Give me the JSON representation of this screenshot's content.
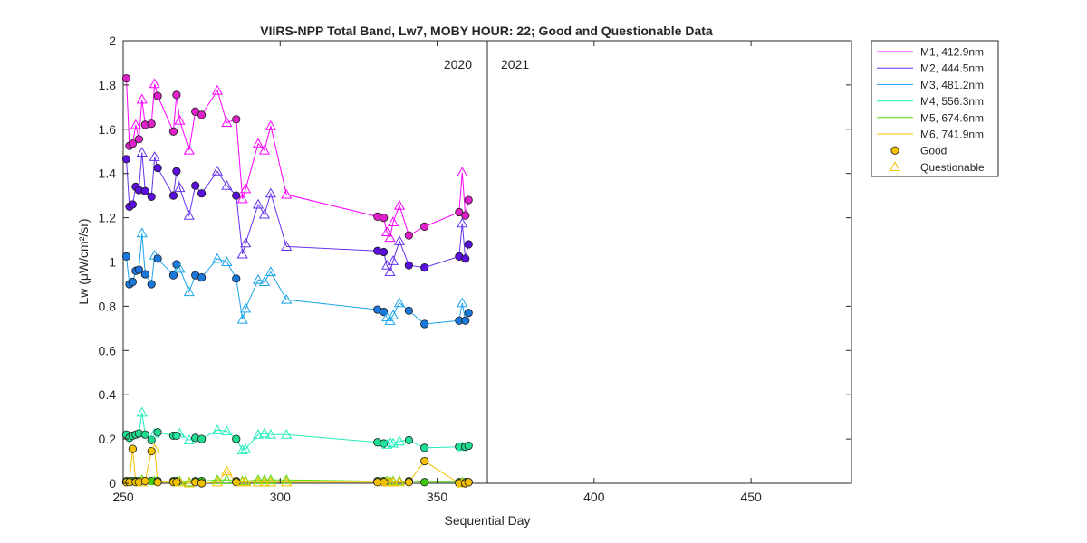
{
  "chart_data": {
    "type": "line",
    "title": "VIIRS-NPP Total Band,  Lw7, MOBY HOUR: 22;  Good and Questionable Data",
    "xlabel": "Sequential Day",
    "ylabel": "Lw (μW/cm²/sr)",
    "xlim": [
      250,
      482
    ],
    "ylim": [
      0,
      2
    ],
    "xticks": [
      250,
      300,
      350,
      400,
      450
    ],
    "yticks": [
      0,
      0.2,
      0.4,
      0.6,
      0.8,
      1,
      1.2,
      1.4,
      1.6,
      1.8,
      2
    ],
    "grid": false,
    "legend_position": "outside-top-right",
    "year_divider": {
      "x": 366,
      "left_label": "2020",
      "right_label": "2021"
    },
    "markers": {
      "good": "filled-circle",
      "questionable": "hollow-triangle"
    },
    "legend": {
      "good_label": "Good",
      "questionable_label": "Questionable",
      "good_marker_color": "#f2c100",
      "questionable_marker_color": "#f2c100"
    },
    "series": [
      {
        "name": "M1, 412.9nm",
        "color": "#ff00ff",
        "fill": "#e020c8",
        "points": [
          [
            251,
            1.83,
            "g"
          ],
          [
            252,
            1.525,
            "g"
          ],
          [
            253,
            1.535,
            "g"
          ],
          [
            254,
            1.62,
            "q"
          ],
          [
            255,
            1.555,
            "g"
          ],
          [
            256,
            1.735,
            "q"
          ],
          [
            257,
            1.62,
            "g"
          ],
          [
            259,
            1.625,
            "g"
          ],
          [
            260,
            1.805,
            "q"
          ],
          [
            261,
            1.75,
            "g"
          ],
          [
            266,
            1.59,
            "g"
          ],
          [
            267,
            1.755,
            "g"
          ],
          [
            268,
            1.64,
            "q"
          ],
          [
            271,
            1.505,
            "q"
          ],
          [
            273,
            1.68,
            "g"
          ],
          [
            275,
            1.665,
            "g"
          ],
          [
            280,
            1.775,
            "q"
          ],
          [
            283,
            1.63,
            "q"
          ],
          [
            286,
            1.645,
            "g"
          ],
          [
            288,
            1.285,
            "q"
          ],
          [
            289,
            1.33,
            "q"
          ],
          [
            293,
            1.535,
            "q"
          ],
          [
            295,
            1.505,
            "q"
          ],
          [
            297,
            1.615,
            "q"
          ],
          [
            302,
            1.305,
            "q"
          ],
          [
            331,
            1.205,
            "g"
          ],
          [
            333,
            1.2,
            "g"
          ],
          [
            334,
            1.135,
            "q"
          ],
          [
            335,
            1.11,
            "q"
          ],
          [
            336,
            1.18,
            "q"
          ],
          [
            338,
            1.255,
            "q"
          ],
          [
            341,
            1.12,
            "g"
          ],
          [
            346,
            1.16,
            "g"
          ],
          [
            357,
            1.225,
            "g"
          ],
          [
            358,
            1.405,
            "q"
          ],
          [
            359,
            1.21,
            "g"
          ],
          [
            360,
            1.28,
            "g"
          ]
        ]
      },
      {
        "name": "M2, 444.5nm",
        "color": "#6633ee",
        "fill": "#5a10dc",
        "points": [
          [
            251,
            1.465,
            "g"
          ],
          [
            252,
            1.25,
            "g"
          ],
          [
            253,
            1.26,
            "g"
          ],
          [
            254,
            1.34,
            "g"
          ],
          [
            255,
            1.325,
            "g"
          ],
          [
            256,
            1.495,
            "q"
          ],
          [
            257,
            1.32,
            "g"
          ],
          [
            259,
            1.295,
            "g"
          ],
          [
            260,
            1.475,
            "q"
          ],
          [
            261,
            1.425,
            "g"
          ],
          [
            266,
            1.3,
            "g"
          ],
          [
            267,
            1.41,
            "g"
          ],
          [
            268,
            1.335,
            "q"
          ],
          [
            271,
            1.21,
            "q"
          ],
          [
            273,
            1.345,
            "g"
          ],
          [
            275,
            1.31,
            "g"
          ],
          [
            280,
            1.41,
            "q"
          ],
          [
            283,
            1.345,
            "q"
          ],
          [
            286,
            1.3,
            "g"
          ],
          [
            288,
            1.035,
            "q"
          ],
          [
            289,
            1.085,
            "q"
          ],
          [
            293,
            1.26,
            "q"
          ],
          [
            295,
            1.215,
            "q"
          ],
          [
            297,
            1.31,
            "q"
          ],
          [
            302,
            1.07,
            "q"
          ],
          [
            331,
            1.05,
            "g"
          ],
          [
            333,
            1.045,
            "g"
          ],
          [
            334,
            0.985,
            "q"
          ],
          [
            335,
            0.955,
            "q"
          ],
          [
            336,
            1.005,
            "q"
          ],
          [
            338,
            1.095,
            "q"
          ],
          [
            341,
            0.985,
            "g"
          ],
          [
            346,
            0.975,
            "g"
          ],
          [
            357,
            1.025,
            "g"
          ],
          [
            358,
            1.175,
            "q"
          ],
          [
            359,
            1.015,
            "g"
          ],
          [
            360,
            1.08,
            "g"
          ]
        ]
      },
      {
        "name": "M3, 481.2nm",
        "color": "#1aa3e8",
        "fill": "#1a78dc",
        "points": [
          [
            251,
            1.025,
            "g"
          ],
          [
            252,
            0.9,
            "g"
          ],
          [
            253,
            0.91,
            "g"
          ],
          [
            254,
            0.96,
            "g"
          ],
          [
            255,
            0.965,
            "g"
          ],
          [
            256,
            1.13,
            "q"
          ],
          [
            257,
            0.945,
            "g"
          ],
          [
            259,
            0.9,
            "g"
          ],
          [
            260,
            1.03,
            "q"
          ],
          [
            261,
            1.015,
            "g"
          ],
          [
            266,
            0.94,
            "g"
          ],
          [
            267,
            0.99,
            "g"
          ],
          [
            268,
            0.97,
            "q"
          ],
          [
            271,
            0.865,
            "q"
          ],
          [
            273,
            0.94,
            "g"
          ],
          [
            275,
            0.93,
            "g"
          ],
          [
            280,
            1.015,
            "q"
          ],
          [
            283,
            1.0,
            "q"
          ],
          [
            286,
            0.925,
            "g"
          ],
          [
            288,
            0.74,
            "q"
          ],
          [
            289,
            0.79,
            "q"
          ],
          [
            293,
            0.92,
            "q"
          ],
          [
            295,
            0.91,
            "q"
          ],
          [
            297,
            0.955,
            "q"
          ],
          [
            302,
            0.83,
            "q"
          ],
          [
            331,
            0.785,
            "g"
          ],
          [
            333,
            0.775,
            "g"
          ],
          [
            334,
            0.75,
            "q"
          ],
          [
            335,
            0.735,
            "q"
          ],
          [
            336,
            0.76,
            "q"
          ],
          [
            338,
            0.815,
            "q"
          ],
          [
            341,
            0.78,
            "g"
          ],
          [
            346,
            0.72,
            "g"
          ],
          [
            357,
            0.735,
            "g"
          ],
          [
            358,
            0.815,
            "q"
          ],
          [
            359,
            0.735,
            "g"
          ],
          [
            360,
            0.77,
            "g"
          ]
        ]
      },
      {
        "name": "M4, 556.3nm",
        "color": "#22eebb",
        "fill": "#20dc90",
        "points": [
          [
            251,
            0.22,
            "g"
          ],
          [
            252,
            0.205,
            "g"
          ],
          [
            253,
            0.215,
            "g"
          ],
          [
            254,
            0.22,
            "g"
          ],
          [
            255,
            0.225,
            "g"
          ],
          [
            256,
            0.32,
            "q"
          ],
          [
            257,
            0.22,
            "g"
          ],
          [
            259,
            0.195,
            "g"
          ],
          [
            260,
            0.225,
            "q"
          ],
          [
            261,
            0.23,
            "g"
          ],
          [
            266,
            0.215,
            "g"
          ],
          [
            267,
            0.215,
            "g"
          ],
          [
            268,
            0.225,
            "q"
          ],
          [
            271,
            0.195,
            "q"
          ],
          [
            273,
            0.205,
            "g"
          ],
          [
            275,
            0.2,
            "g"
          ],
          [
            280,
            0.24,
            "q"
          ],
          [
            283,
            0.235,
            "q"
          ],
          [
            286,
            0.2,
            "g"
          ],
          [
            288,
            0.15,
            "q"
          ],
          [
            289,
            0.155,
            "q"
          ],
          [
            293,
            0.22,
            "q"
          ],
          [
            295,
            0.225,
            "q"
          ],
          [
            297,
            0.22,
            "q"
          ],
          [
            302,
            0.22,
            "q"
          ],
          [
            331,
            0.185,
            "g"
          ],
          [
            333,
            0.18,
            "g"
          ],
          [
            334,
            0.175,
            "q"
          ],
          [
            335,
            0.185,
            "q"
          ],
          [
            336,
            0.18,
            "q"
          ],
          [
            338,
            0.19,
            "q"
          ],
          [
            341,
            0.195,
            "g"
          ],
          [
            346,
            0.16,
            "g"
          ],
          [
            357,
            0.165,
            "g"
          ],
          [
            358,
            0.165,
            "q"
          ],
          [
            359,
            0.165,
            "g"
          ],
          [
            360,
            0.17,
            "g"
          ]
        ]
      },
      {
        "name": "M5, 674.6nm",
        "color": "#55dd11",
        "fill": "#3cc80a",
        "points": [
          [
            251,
            0.01,
            "g"
          ],
          [
            252,
            0.01,
            "g"
          ],
          [
            253,
            0.01,
            "g"
          ],
          [
            254,
            0.01,
            "g"
          ],
          [
            255,
            0.01,
            "g"
          ],
          [
            256,
            0.015,
            "q"
          ],
          [
            257,
            0.01,
            "g"
          ],
          [
            259,
            0.01,
            "g"
          ],
          [
            260,
            0.01,
            "q"
          ],
          [
            261,
            0.01,
            "g"
          ],
          [
            266,
            0.01,
            "g"
          ],
          [
            267,
            0.01,
            "g"
          ],
          [
            268,
            0.01,
            "q"
          ],
          [
            271,
            0.005,
            "q"
          ],
          [
            273,
            0.01,
            "g"
          ],
          [
            275,
            0.01,
            "g"
          ],
          [
            280,
            0.015,
            "q"
          ],
          [
            283,
            0.015,
            "q"
          ],
          [
            286,
            0.01,
            "g"
          ],
          [
            288,
            0.01,
            "q"
          ],
          [
            289,
            0.01,
            "q"
          ],
          [
            293,
            0.015,
            "q"
          ],
          [
            295,
            0.015,
            "q"
          ],
          [
            297,
            0.015,
            "q"
          ],
          [
            302,
            0.015,
            "q"
          ],
          [
            331,
            0.01,
            "g"
          ],
          [
            333,
            0.01,
            "g"
          ],
          [
            334,
            0.01,
            "q"
          ],
          [
            335,
            0.01,
            "q"
          ],
          [
            336,
            0.01,
            "q"
          ],
          [
            338,
            0.01,
            "q"
          ],
          [
            341,
            0.01,
            "g"
          ],
          [
            346,
            0.005,
            "g"
          ],
          [
            357,
            0.005,
            "g"
          ],
          [
            358,
            0.005,
            "q"
          ],
          [
            359,
            0.005,
            "g"
          ],
          [
            360,
            0.005,
            "g"
          ]
        ]
      },
      {
        "name": "M6, 741.9nm",
        "color": "#f2c100",
        "fill": "#f2c100",
        "points": [
          [
            251,
            0.005,
            "g"
          ],
          [
            252,
            0.005,
            "g"
          ],
          [
            253,
            0.155,
            "g"
          ],
          [
            254,
            0.005,
            "g"
          ],
          [
            255,
            0.005,
            "g"
          ],
          [
            256,
            0.005,
            "q"
          ],
          [
            257,
            0.01,
            "g"
          ],
          [
            259,
            0.145,
            "g"
          ],
          [
            260,
            0.155,
            "q"
          ],
          [
            261,
            0.005,
            "g"
          ],
          [
            266,
            0.005,
            "g"
          ],
          [
            267,
            0.005,
            "g"
          ],
          [
            268,
            0.005,
            "q"
          ],
          [
            271,
            0.0,
            "q"
          ],
          [
            273,
            0.005,
            "g"
          ],
          [
            275,
            0.0,
            "g"
          ],
          [
            280,
            0.005,
            "q"
          ],
          [
            283,
            0.055,
            "q"
          ],
          [
            286,
            0.005,
            "g"
          ],
          [
            288,
            0.005,
            "q"
          ],
          [
            289,
            0.005,
            "q"
          ],
          [
            293,
            0.005,
            "q"
          ],
          [
            295,
            0.005,
            "q"
          ],
          [
            297,
            0.005,
            "q"
          ],
          [
            302,
            0.005,
            "q"
          ],
          [
            331,
            0.005,
            "g"
          ],
          [
            333,
            0.005,
            "g"
          ],
          [
            334,
            0.005,
            "q"
          ],
          [
            335,
            0.005,
            "q"
          ],
          [
            336,
            0.005,
            "q"
          ],
          [
            338,
            0.005,
            "q"
          ],
          [
            341,
            0.005,
            "g"
          ],
          [
            346,
            0.1,
            "g"
          ],
          [
            357,
            0.0,
            "g"
          ],
          [
            358,
            0.0,
            "q"
          ],
          [
            359,
            0.0,
            "g"
          ],
          [
            360,
            0.005,
            "g"
          ]
        ]
      }
    ]
  }
}
